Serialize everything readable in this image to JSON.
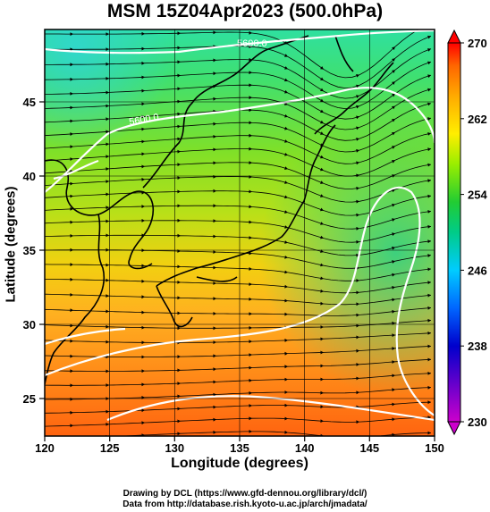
{
  "title": "MSM 15Z04Apr2023 (500.0hPa)",
  "xlabel": "Longitude (degrees)",
  "ylabel": "Latitude  (degrees)",
  "x_ticks": [
    "120",
    "125",
    "130",
    "135",
    "140",
    "145",
    "150"
  ],
  "y_ticks": [
    "25",
    "30",
    "35",
    "40",
    "45"
  ],
  "colorbar_ticks": [
    "230",
    "238",
    "246",
    "254",
    "262",
    "270"
  ],
  "contour_labels": [
    "5600.0",
    "5600.0"
  ],
  "footer_line1": "Drawing by DCL (https://www.gfd-dennou.org/library/dcl/)",
  "footer_line2": "Data from http://database.rish.kyoto-u.ac.jp/arch/jmadata/",
  "chart_data": {
    "type": "map",
    "title": "MSM 15Z04Apr2023 (500.0hPa)",
    "xlabel": "Longitude (degrees)",
    "ylabel": "Latitude  (degrees)",
    "xlim": [
      120,
      150
    ],
    "ylim": [
      22.5,
      47.6
    ],
    "grid": true,
    "colorbar": {
      "range": [
        230,
        270
      ],
      "ticks": [
        230,
        238,
        246,
        254,
        262,
        270
      ],
      "colors": [
        "#cc00cc",
        "#0000cc",
        "#0066ff",
        "#00ccff",
        "#00cc66",
        "#33cc33",
        "#99ee00",
        "#ffee00",
        "#ffaa00",
        "#ff6600",
        "#ff0000"
      ]
    },
    "contour_level": 5600.0,
    "colors": {
      "north": "#35e28a",
      "middle": "#8fe31a",
      "south": "#ff9a20",
      "far_south": "#ff6a10",
      "contour": "#ffffff",
      "coast": "#000000",
      "streamline": "#000000"
    }
  }
}
